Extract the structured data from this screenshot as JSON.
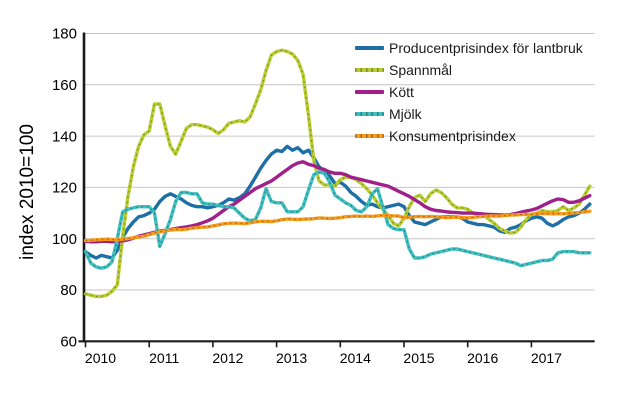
{
  "chart_data": {
    "type": "line",
    "ylabel": "index 2010=100",
    "x_start": "2010-01",
    "x_end": "2017-12",
    "x_frequency": "monthly",
    "xticks": [
      "2010",
      "2011",
      "2012",
      "2013",
      "2014",
      "2015",
      "2016",
      "2017"
    ],
    "yticks": [
      60,
      80,
      100,
      120,
      140,
      160,
      180
    ],
    "ylim": [
      60,
      180
    ],
    "grid": true,
    "legend_position": "top-right",
    "axis_color": "#1a1a1a",
    "gridline_color": "#c6c6c6",
    "series": [
      {
        "name": "Producentprisindex för lantbruk",
        "color": "#1d6fa5",
        "style": "solid",
        "values": [
          95,
          93.5,
          92.5,
          93.5,
          93,
          92.5,
          95.5,
          100.5,
          104,
          106.5,
          108.5,
          109,
          110,
          111.5,
          114.5,
          116.5,
          117.5,
          116.5,
          115.5,
          114,
          113,
          112.5,
          112.5,
          112,
          112.5,
          113,
          114,
          115.5,
          115,
          116,
          117.5,
          120.5,
          124,
          127.5,
          130.5,
          133,
          134.5,
          134,
          136,
          134.5,
          135.5,
          133.5,
          134.5,
          131.5,
          128,
          126.5,
          124.5,
          121.5,
          122,
          120.5,
          118,
          116.5,
          114.5,
          113,
          113.5,
          112.5,
          112,
          112.5,
          113,
          113.5,
          112.5,
          109,
          106.5,
          106,
          105.5,
          106.5,
          107.5,
          108.5,
          108.5,
          108.5,
          108.5,
          108,
          106.5,
          106,
          105.5,
          105.5,
          105,
          104.5,
          103,
          102.5,
          104,
          104.5,
          105.5,
          107,
          108,
          108.5,
          108,
          106,
          105,
          106,
          107.5,
          108.5,
          109,
          110,
          111.5,
          113.5
        ]
      },
      {
        "name": "Spannmål",
        "color": "#b7cd32",
        "style": "dotted",
        "values": [
          78.5,
          78,
          77.5,
          77.5,
          78,
          79.5,
          82,
          101,
          116.5,
          128,
          136,
          140.5,
          142,
          152.5,
          152.5,
          144,
          136,
          133,
          138,
          143,
          144.5,
          144.5,
          144,
          143.5,
          142.5,
          141,
          142.5,
          145,
          145.5,
          146,
          145.5,
          147.5,
          152.5,
          158,
          165.5,
          171.5,
          173,
          173.5,
          173,
          172,
          169.5,
          164,
          148,
          130.5,
          122.5,
          121,
          121,
          120.5,
          123,
          124,
          124,
          123,
          121.5,
          119.5,
          117,
          114,
          111.5,
          109,
          106,
          105,
          108,
          112.5,
          116,
          117,
          114.5,
          117.5,
          119,
          118,
          116,
          113.5,
          112,
          112,
          111.5,
          110,
          109.5,
          109.5,
          107.5,
          106,
          104,
          103,
          102.2,
          102.5,
          104.5,
          107.5,
          109.5,
          110,
          111,
          110.5,
          110.5,
          111,
          112.5,
          111,
          112,
          113.5,
          117,
          120.5
        ]
      },
      {
        "name": "Kött",
        "color": "#a0208a",
        "style": "solid",
        "values": [
          99,
          98.8,
          98.8,
          99,
          99,
          98.8,
          99,
          99.2,
          99.6,
          100.2,
          101,
          101.5,
          102,
          102.5,
          103,
          103.3,
          103.6,
          104,
          104.3,
          104.6,
          105,
          105.5,
          106.2,
          107,
          108,
          109.5,
          111,
          112.5,
          113.5,
          115,
          116.5,
          118,
          119.5,
          120.5,
          121.5,
          122.5,
          124,
          125.5,
          127,
          128.5,
          129.5,
          130,
          129,
          128.5,
          127.5,
          127,
          126,
          125.5,
          125.5,
          125,
          124,
          123.5,
          123,
          122.5,
          122,
          121.5,
          121,
          120.5,
          119.5,
          118.5,
          117.5,
          116.5,
          115.2,
          114,
          112.5,
          111.5,
          111,
          110.8,
          110.5,
          110.3,
          110.2,
          110,
          110,
          110,
          109.8,
          109.6,
          109.5,
          109.4,
          109.3,
          109.2,
          109.4,
          109.8,
          110.3,
          110.8,
          111.2,
          111.8,
          112.8,
          113.8,
          114.8,
          115.5,
          115.2,
          114.2,
          114.2,
          114.8,
          115.8,
          116.8
        ]
      },
      {
        "name": "Mjölk",
        "color": "#3fbfbf",
        "style": "dotted",
        "values": [
          95,
          90.5,
          89,
          88.5,
          89,
          91,
          100,
          110.5,
          111.5,
          112,
          112.5,
          112.5,
          112.5,
          110,
          97,
          102,
          107.5,
          114.5,
          118,
          118,
          117.5,
          117.5,
          114,
          113.5,
          113.5,
          113,
          112.5,
          112.5,
          112,
          110,
          108,
          107,
          107.5,
          112,
          119.5,
          114.5,
          114,
          114,
          110.5,
          110.5,
          110.5,
          112.5,
          119,
          125,
          126,
          125.5,
          122,
          117,
          115.5,
          114,
          113,
          111,
          110.5,
          112.5,
          117.5,
          119.5,
          112.5,
          105.5,
          104,
          103.5,
          103.5,
          96,
          92.5,
          92.5,
          93,
          94,
          94.5,
          95,
          95.5,
          96,
          96,
          95.5,
          95,
          94.5,
          94,
          93.5,
          93,
          92.5,
          92,
          91.5,
          91,
          90.5,
          89.5,
          90,
          90.5,
          91,
          91.5,
          91.5,
          92,
          94.5,
          95,
          95,
          95,
          94.5,
          94.5,
          94.5
        ]
      },
      {
        "name": "Konsumentprisindex",
        "color": "#f59b1e",
        "style": "dotted",
        "values": [
          99.3,
          99.4,
          99.6,
          99.7,
          99.8,
          99.7,
          99.6,
          99.8,
          100.1,
          100.4,
          100.7,
          101,
          101.6,
          102.2,
          102.7,
          103.1,
          103.4,
          103.6,
          103.5,
          103.7,
          104.1,
          104.3,
          104.5,
          104.6,
          105,
          105.4,
          105.8,
          106,
          106.1,
          106,
          105.9,
          106.2,
          106.6,
          106.8,
          106.8,
          106.7,
          107,
          107.4,
          107.7,
          107.6,
          107.5,
          107.6,
          107.7,
          107.8,
          108.1,
          108,
          107.9,
          108,
          108.2,
          108.6,
          108.7,
          108.8,
          108.7,
          108.8,
          108.7,
          108.9,
          109.1,
          109,
          108.9,
          108.8,
          108.2,
          108.4,
          108.6,
          108.7,
          108.6,
          108.7,
          108.6,
          108.4,
          108.2,
          108.3,
          108.4,
          108.3,
          108.1,
          108.3,
          108.6,
          108.7,
          108.8,
          108.9,
          108.8,
          109,
          109.2,
          109.3,
          109.4,
          109.5,
          109.5,
          109.7,
          109.8,
          109.8,
          109.7,
          109.8,
          109.7,
          109.9,
          110.1,
          110.2,
          110.5,
          110.7
        ]
      }
    ]
  }
}
